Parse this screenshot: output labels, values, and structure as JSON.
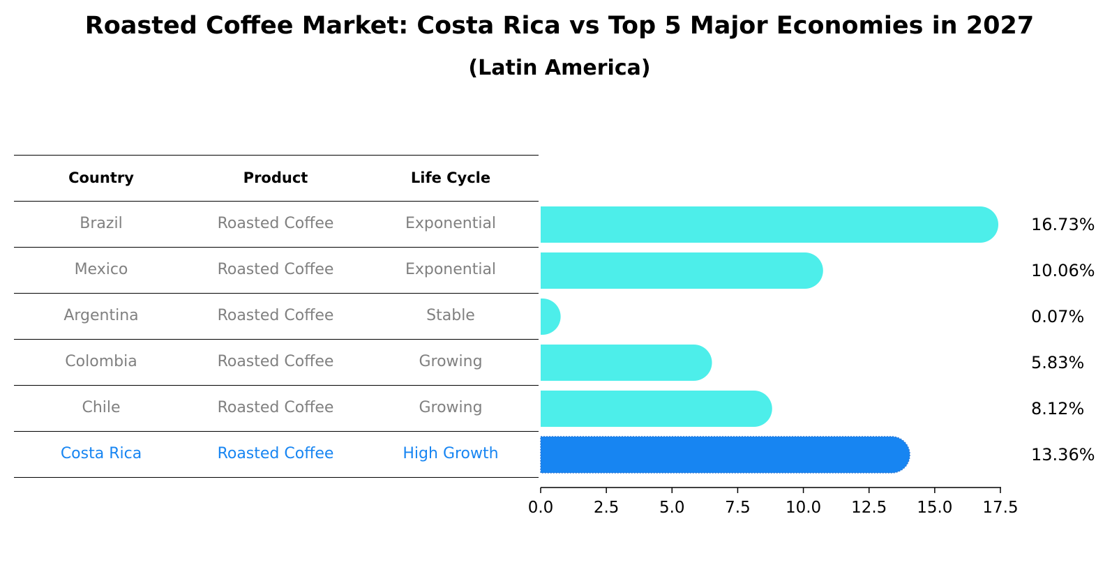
{
  "chart_data": {
    "type": "bar",
    "title": "Roasted Coffee Market: Costa Rica vs Top 5 Major Economies in 2027",
    "subtitle": "(Latin America)",
    "table": {
      "columns": [
        "Country",
        "Product",
        "Life Cycle"
      ],
      "rows": [
        {
          "country": "Brazil",
          "product": "Roasted Coffee",
          "life_cycle": "Exponential"
        },
        {
          "country": "Mexico",
          "product": "Roasted Coffee",
          "life_cycle": "Exponential"
        },
        {
          "country": "Argentina",
          "product": "Roasted Coffee",
          "life_cycle": "Stable"
        },
        {
          "country": "Colombia",
          "product": "Roasted Coffee",
          "life_cycle": "Growing"
        },
        {
          "country": "Chile",
          "product": "Roasted Coffee",
          "life_cycle": "Growing"
        },
        {
          "country": "Costa Rica",
          "product": "Roasted Coffee",
          "life_cycle": "High Growth"
        }
      ]
    },
    "categories": [
      "Brazil",
      "Mexico",
      "Argentina",
      "Colombia",
      "Chile",
      "Costa Rica"
    ],
    "values": [
      16.73,
      10.06,
      0.07,
      5.83,
      8.12,
      13.36
    ],
    "value_labels": [
      "16.73%",
      "10.06%",
      "0.07%",
      "5.83%",
      "8.12%",
      "13.36%"
    ],
    "highlight": "Costa Rica",
    "xlim": [
      0,
      17.5
    ],
    "xticks": [
      "0.0",
      "2.5",
      "5.0",
      "7.5",
      "10.0",
      "12.5",
      "15.0",
      "17.5"
    ],
    "xlabel": "",
    "ylabel": "",
    "grid": false,
    "colors": {
      "bar": "#4deeea",
      "highlight_bar": "#1785f2",
      "highlight_text": "#1785f2",
      "row_text": "#808080",
      "header_text": "#000000",
      "value_text": "#000000"
    }
  }
}
